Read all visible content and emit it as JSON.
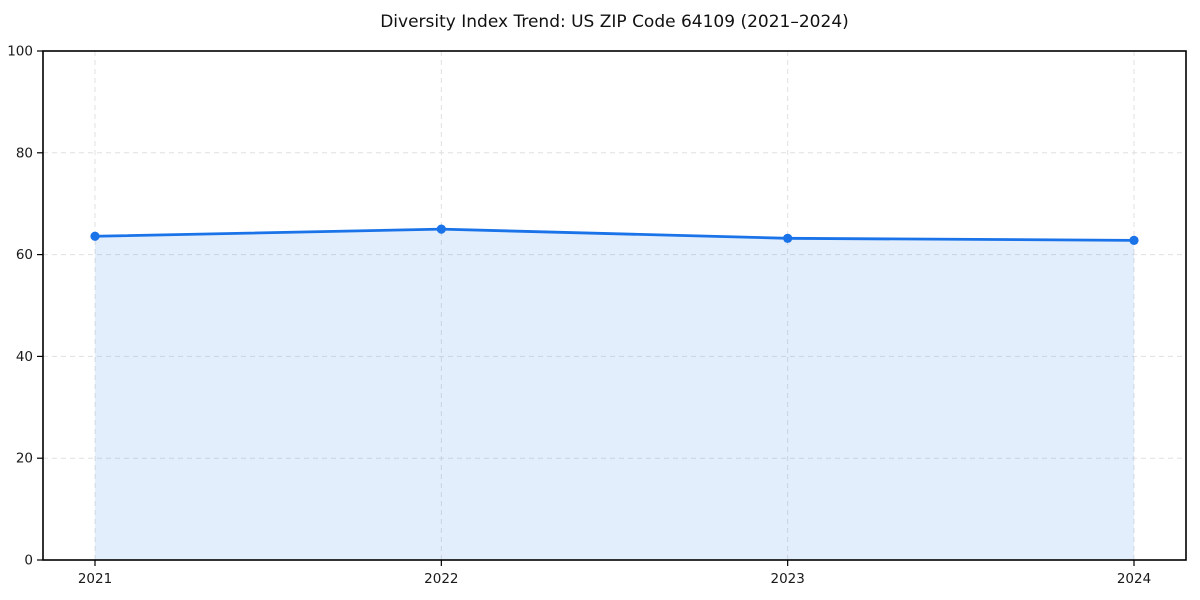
{
  "page": {
    "background_color": "#ffffff"
  },
  "chart_data": {
    "type": "area",
    "title": "Diversity Index Trend: US ZIP Code 64109 (2021–2024)",
    "x": [
      "2021",
      "2022",
      "2023",
      "2024"
    ],
    "series": [
      {
        "name": "Diversity Index",
        "values": [
          63.6,
          65.0,
          63.2,
          62.8
        ]
      }
    ],
    "xlabel": "",
    "ylabel": "",
    "ylim": [
      0,
      100
    ],
    "yticks": [
      0,
      20,
      40,
      60,
      80,
      100
    ],
    "grid": true,
    "grid_style": "dashed",
    "grid_color": "#e0e0e0",
    "legend": "none",
    "line_color": "#1a73e8",
    "marker": "circle",
    "marker_color": "#1a73e8",
    "fill_color": "#1a73e8",
    "fill_opacity": 0.12,
    "spine_color": "#000000",
    "title_color": "#111111",
    "tick_label_color": "#1a1a1a"
  }
}
